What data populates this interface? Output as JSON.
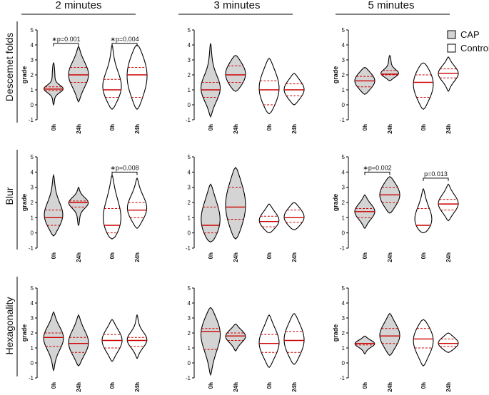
{
  "figure": {
    "column_headers": [
      "2 minutes",
      "3 minutes",
      "5 minutes"
    ],
    "row_labels": [
      "Descemet folds",
      "Blur",
      "Hexagonality"
    ],
    "legend": [
      {
        "label": "CAP",
        "fill": "#d4d4d4"
      },
      {
        "label": "Control",
        "fill": "#ffffff"
      }
    ],
    "colors": {
      "median": "#cc0000",
      "quartile": "#cc0000",
      "outline": "#000000",
      "cap_fill": "#d4d4d4"
    }
  },
  "chart_data": [
    {
      "type": "violin",
      "row": "Descemet folds",
      "column": "2 minutes",
      "ylabel": "grade",
      "ylim": [
        -1,
        5
      ],
      "yticks": [
        "-1",
        "0",
        "1",
        "2",
        "3",
        "4",
        "5"
      ],
      "categories": [
        "0h",
        "24h",
        "0h",
        "24h"
      ],
      "groups": [
        {
          "name": "CAP",
          "x": "0h",
          "min": 0,
          "q1": 0.95,
          "median": 1.05,
          "q3": 1.2,
          "max": 2.8
        },
        {
          "name": "CAP",
          "x": "24h",
          "min": 0.2,
          "q1": 1.5,
          "median": 2.0,
          "q3": 2.5,
          "max": 3.9
        },
        {
          "name": "Control",
          "x": "0h",
          "min": -0.3,
          "q1": 0.5,
          "median": 1.0,
          "q3": 1.7,
          "max": 4.0
        },
        {
          "name": "Control",
          "x": "24h",
          "min": -0.3,
          "q1": 0.5,
          "median": 2.0,
          "q3": 2.5,
          "max": 4.0
        }
      ],
      "annotations": [
        {
          "text": "p=0.001",
          "star": true,
          "between": [
            0,
            1
          ],
          "level": 4.1
        },
        {
          "text": "p=0.004",
          "star": true,
          "between": [
            2,
            3
          ],
          "level": 4.1
        }
      ]
    },
    {
      "type": "violin",
      "row": "Descemet folds",
      "column": "3 minutes",
      "ylabel": "",
      "ylim": [
        -1,
        5
      ],
      "yticks": [
        "-1",
        "0",
        "1",
        "2",
        "3",
        "4",
        "5"
      ],
      "categories": [
        "0h",
        "24h",
        "0h",
        "24h"
      ],
      "groups": [
        {
          "name": "CAP",
          "x": "0h",
          "min": -0.8,
          "q1": 0.5,
          "median": 1.0,
          "q3": 1.5,
          "max": 4.1
        },
        {
          "name": "CAP",
          "x": "24h",
          "min": 0.9,
          "q1": 1.5,
          "median": 2.0,
          "q3": 2.6,
          "max": 3.3
        },
        {
          "name": "Control",
          "x": "0h",
          "min": -0.6,
          "q1": 0.0,
          "median": 1.0,
          "q3": 1.6,
          "max": 3.1
        },
        {
          "name": "Control",
          "x": "24h",
          "min": 0.0,
          "q1": 0.6,
          "median": 1.0,
          "q3": 1.4,
          "max": 2.1
        }
      ],
      "annotations": []
    },
    {
      "type": "violin",
      "row": "Descemet folds",
      "column": "5 minutes",
      "ylabel": "grade",
      "ylim": [
        -1,
        5
      ],
      "yticks": [
        "-1",
        "0",
        "1",
        "2",
        "3",
        "4",
        "5"
      ],
      "categories": [
        "0h",
        "24h",
        "0h",
        "24h"
      ],
      "groups": [
        {
          "name": "CAP",
          "x": "0h",
          "min": 0.7,
          "q1": 1.2,
          "median": 1.6,
          "q3": 1.9,
          "max": 2.5
        },
        {
          "name": "CAP",
          "x": "24h",
          "min": 1.6,
          "q1": 2.0,
          "median": 2.05,
          "q3": 2.3,
          "max": 3.3
        },
        {
          "name": "Control",
          "x": "0h",
          "min": -0.3,
          "q1": 0.5,
          "median": 1.5,
          "q3": 2.0,
          "max": 2.8
        },
        {
          "name": "Control",
          "x": "24h",
          "min": 0.9,
          "q1": 1.8,
          "median": 2.1,
          "q3": 2.4,
          "max": 3.2
        }
      ],
      "annotations": []
    },
    {
      "type": "violin",
      "row": "Blur",
      "column": "2 minutes",
      "ylabel": "grade",
      "ylim": [
        -1,
        5
      ],
      "yticks": [
        "-1",
        "0",
        "1",
        "2",
        "3",
        "4",
        "5"
      ],
      "categories": [
        "0h",
        "24h",
        "0h",
        "24h"
      ],
      "groups": [
        {
          "name": "CAP",
          "x": "0h",
          "min": -0.2,
          "q1": 0.5,
          "median": 1.0,
          "q3": 1.5,
          "max": 3.8
        },
        {
          "name": "CAP",
          "x": "24h",
          "min": 0.5,
          "q1": 1.7,
          "median": 2.0,
          "q3": 2.1,
          "max": 3.0
        },
        {
          "name": "Control",
          "x": "0h",
          "min": -0.4,
          "q1": 0.0,
          "median": 0.5,
          "q3": 1.6,
          "max": 3.8
        },
        {
          "name": "Control",
          "x": "24h",
          "min": 0.3,
          "q1": 1.0,
          "median": 1.5,
          "q3": 2.0,
          "max": 3.6
        }
      ],
      "annotations": [
        {
          "text": "p=0.008",
          "star": true,
          "between": [
            2,
            3
          ],
          "level": 4.0
        }
      ]
    },
    {
      "type": "violin",
      "row": "Blur",
      "column": "3 minutes",
      "ylabel": "",
      "ylim": [
        -1,
        5
      ],
      "yticks": [
        "-1",
        "0",
        "1",
        "2",
        "3",
        "4",
        "5"
      ],
      "categories": [
        "0h",
        "24h",
        "0h",
        "24h"
      ],
      "groups": [
        {
          "name": "CAP",
          "x": "0h",
          "min": -0.6,
          "q1": 0.0,
          "median": 0.5,
          "q3": 1.7,
          "max": 3.2
        },
        {
          "name": "CAP",
          "x": "24h",
          "min": -0.4,
          "q1": 0.9,
          "median": 1.7,
          "q3": 3.0,
          "max": 4.3
        },
        {
          "name": "Control",
          "x": "0h",
          "min": 0.0,
          "q1": 0.4,
          "median": 0.75,
          "q3": 1.1,
          "max": 1.9
        },
        {
          "name": "Control",
          "x": "24h",
          "min": 0.2,
          "q1": 0.7,
          "median": 1.0,
          "q3": 1.5,
          "max": 2.0
        }
      ],
      "annotations": []
    },
    {
      "type": "violin",
      "row": "Blur",
      "column": "5 minutes",
      "ylabel": "grade",
      "ylim": [
        -1,
        5
      ],
      "yticks": [
        "-1",
        "0",
        "1",
        "2",
        "3",
        "4",
        "5"
      ],
      "categories": [
        "0h",
        "24h",
        "0h",
        "24h"
      ],
      "groups": [
        {
          "name": "CAP",
          "x": "0h",
          "min": 0.3,
          "q1": 1.0,
          "median": 1.4,
          "q3": 1.6,
          "max": 2.5
        },
        {
          "name": "CAP",
          "x": "24h",
          "min": 1.3,
          "q1": 2.0,
          "median": 2.5,
          "q3": 3.0,
          "max": 3.7
        },
        {
          "name": "Control",
          "x": "0h",
          "min": 0.0,
          "q1": 0.5,
          "median": 0.5,
          "q3": 1.6,
          "max": 2.9
        },
        {
          "name": "Control",
          "x": "24h",
          "min": 0.8,
          "q1": 1.5,
          "median": 1.9,
          "q3": 2.2,
          "max": 3.2
        }
      ],
      "annotations": [
        {
          "text": "p=0.002",
          "star": true,
          "between": [
            0,
            1
          ],
          "level": 4.0
        },
        {
          "text": "p=0.013",
          "star": false,
          "between": [
            2,
            3
          ],
          "level": 3.6
        }
      ]
    },
    {
      "type": "violin",
      "row": "Hexagonality",
      "column": "2 minutes",
      "ylabel": "grade",
      "ylim": [
        -1,
        5
      ],
      "yticks": [
        "-1",
        "0",
        "1",
        "2",
        "3",
        "4",
        "5"
      ],
      "categories": [
        "0h",
        "24h",
        "0h",
        "24h"
      ],
      "groups": [
        {
          "name": "CAP",
          "x": "0h",
          "min": -0.5,
          "q1": 1.1,
          "median": 1.7,
          "q3": 2.0,
          "max": 3.4
        },
        {
          "name": "CAP",
          "x": "24h",
          "min": -0.2,
          "q1": 0.7,
          "median": 1.3,
          "q3": 1.7,
          "max": 3.2
        },
        {
          "name": "Control",
          "x": "0h",
          "min": 0.1,
          "q1": 1.0,
          "median": 1.5,
          "q3": 1.9,
          "max": 2.9
        },
        {
          "name": "Control",
          "x": "24h",
          "min": 0.3,
          "q1": 1.1,
          "median": 1.5,
          "q3": 1.7,
          "max": 3.2
        }
      ],
      "annotations": []
    },
    {
      "type": "violin",
      "row": "Hexagonality",
      "column": "3 minutes",
      "ylabel": "",
      "ylim": [
        -1,
        5
      ],
      "yticks": [
        "-1",
        "0",
        "1",
        "2",
        "3",
        "4",
        "5"
      ],
      "categories": [
        "0h",
        "24h",
        "0h",
        "24h"
      ],
      "groups": [
        {
          "name": "CAP",
          "x": "0h",
          "min": -0.8,
          "q1": 0.9,
          "median": 2.1,
          "q3": 2.3,
          "max": 3.7
        },
        {
          "name": "CAP",
          "x": "24h",
          "min": 0.8,
          "q1": 1.5,
          "median": 1.8,
          "q3": 2.0,
          "max": 2.6
        },
        {
          "name": "Control",
          "x": "0h",
          "min": -0.3,
          "q1": 0.7,
          "median": 1.3,
          "q3": 1.9,
          "max": 3.2
        },
        {
          "name": "Control",
          "x": "24h",
          "min": -0.1,
          "q1": 0.7,
          "median": 1.5,
          "q3": 2.1,
          "max": 3.3
        }
      ],
      "annotations": []
    },
    {
      "type": "violin",
      "row": "Hexagonality",
      "column": "5 minutes",
      "ylabel": "grade",
      "ylim": [
        -1,
        5
      ],
      "yticks": [
        "-1",
        "0",
        "1",
        "2",
        "3",
        "4",
        "5"
      ],
      "categories": [
        "0h",
        "24h",
        "0h",
        "24h"
      ],
      "groups": [
        {
          "name": "CAP",
          "x": "0h",
          "min": 0.6,
          "q1": 1.2,
          "median": 1.3,
          "q3": 1.3,
          "max": 1.8
        },
        {
          "name": "CAP",
          "x": "24h",
          "min": 0.5,
          "q1": 1.3,
          "median": 1.8,
          "q3": 2.3,
          "max": 3.3
        },
        {
          "name": "Control",
          "x": "0h",
          "min": -0.2,
          "q1": 1.0,
          "median": 1.6,
          "q3": 2.3,
          "max": 2.9
        },
        {
          "name": "Control",
          "x": "24h",
          "min": 0.7,
          "q1": 1.1,
          "median": 1.3,
          "q3": 1.6,
          "max": 2.0
        }
      ],
      "annotations": []
    }
  ]
}
